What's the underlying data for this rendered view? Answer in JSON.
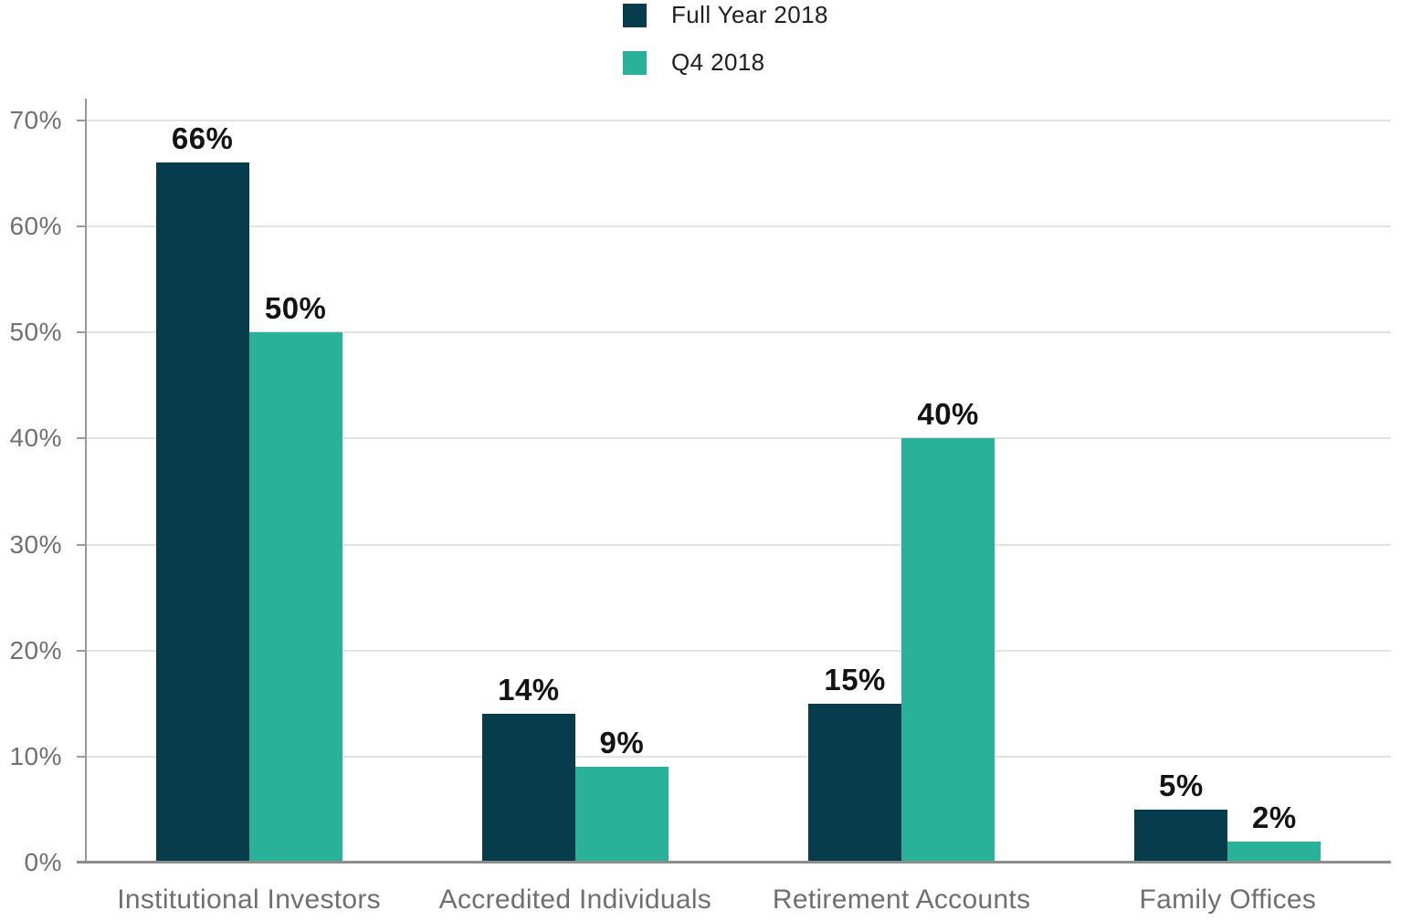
{
  "chart_data": {
    "type": "bar",
    "title": "",
    "categories": [
      "Institutional Investors",
      "Accredited Individuals",
      "Retirement Accounts",
      "Family Offices"
    ],
    "series": [
      {
        "name": "Full Year 2018",
        "color": "#073c4d",
        "values": [
          66,
          14,
          15,
          5
        ],
        "labels": [
          "66%",
          "14%",
          "15%",
          "5%"
        ]
      },
      {
        "name": "Q4 2018",
        "color": "#2ab199",
        "values": [
          50,
          9,
          40,
          2
        ],
        "labels": [
          "50%",
          "9%",
          "40%",
          "2%"
        ]
      }
    ],
    "xlabel": "",
    "ylabel": "",
    "ylim": [
      0,
      70
    ],
    "ytick_step": 10,
    "ytick_labels": [
      "0%",
      "10%",
      "20%",
      "30%",
      "40%",
      "50%",
      "60%",
      "70%"
    ],
    "grid": true,
    "legend_position": "top-center",
    "colors": {
      "grid_line": "#e2e2e2",
      "axis_line": "#9a9a9a",
      "baseline": "#8d8d8d",
      "ytick_label_text": "#707070",
      "category_label_text": "#6f6f6f",
      "data_label_text": "#131313",
      "legend_text": "#1f1f1f",
      "background": "#ffffff"
    }
  }
}
